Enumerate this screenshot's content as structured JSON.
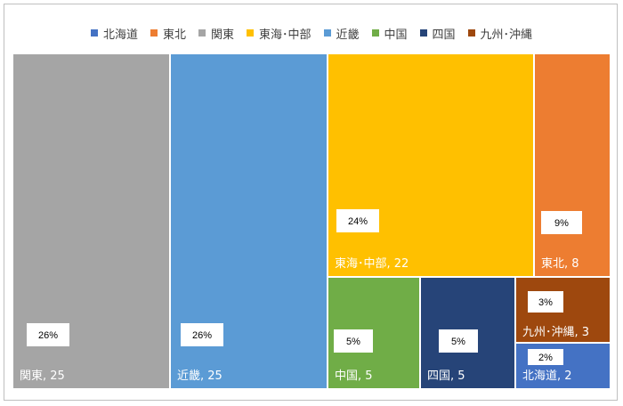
{
  "chart_data": {
    "type": "treemap",
    "legend_position": "top",
    "legend": [
      "北海道",
      "東北",
      "関東",
      "東海･中部",
      "近畿",
      "中国",
      "四国",
      "九州･沖縄"
    ],
    "colors": {
      "北海道": "#4472c4",
      "東北": "#ed7d31",
      "関東": "#a5a5a5",
      "東海･中部": "#ffc000",
      "近畿": "#5b9bd5",
      "中国": "#70ad47",
      "四国": "#264478",
      "九州･沖縄": "#9e480e"
    },
    "items": [
      {
        "name": "関東",
        "value": 25,
        "label": "関東, 25",
        "percent": "26%"
      },
      {
        "name": "近畿",
        "value": 25,
        "label": "近畿, 25",
        "percent": "26%"
      },
      {
        "name": "東海･中部",
        "value": 22,
        "label": "東海･中部, 22",
        "percent": "24%"
      },
      {
        "name": "東北",
        "value": 8,
        "label": "東北, 8",
        "percent": "9%"
      },
      {
        "name": "中国",
        "value": 5,
        "label": "中国, 5",
        "percent": "5%"
      },
      {
        "name": "四国",
        "value": 5,
        "label": "四国, 5",
        "percent": "5%"
      },
      {
        "name": "九州･沖縄",
        "value": 3,
        "label": "九州･沖縄, 3",
        "percent": "3%"
      },
      {
        "name": "北海道",
        "value": 2,
        "label": "北海道, 2",
        "percent": "2%"
      }
    ]
  }
}
